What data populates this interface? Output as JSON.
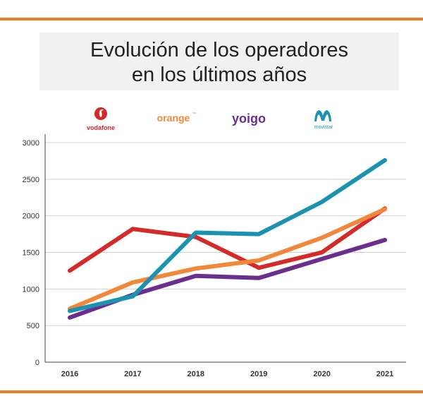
{
  "header": {
    "title_line1": "Evolución de los operadores",
    "title_line2": "en los últimos años"
  },
  "colors": {
    "rule": "#ef7c2a",
    "vodafone": "#d42a2a",
    "orange": "#f2873a",
    "yoigo": "#6a2f8e",
    "movistar": "#1b93b0",
    "grid": "#d4d4d4",
    "axis": "#444444"
  },
  "legend": [
    {
      "id": "vodafone",
      "brand": "vodafone",
      "icon": "vodafone-logo-icon"
    },
    {
      "id": "orange",
      "brand": "orange",
      "mark": "™",
      "icon": "orange-logo-icon"
    },
    {
      "id": "yoigo",
      "brand": "yoigo",
      "icon": "yoigo-logo-icon"
    },
    {
      "id": "movistar",
      "brand": "movistar",
      "icon": "movistar-logo-icon"
    }
  ],
  "chart_data": {
    "type": "line",
    "title": "Evolución de los operadores en los últimos años",
    "xlabel": "",
    "ylabel": "",
    "categories": [
      "2016",
      "2017",
      "2018",
      "2019",
      "2020",
      "2021"
    ],
    "ylim": [
      0,
      3000
    ],
    "yticks": [
      "0",
      "500",
      "1000",
      "1500",
      "2000",
      "2500",
      "3000"
    ],
    "grid": true,
    "legend_position": "top",
    "series": [
      {
        "name": "vodafone",
        "color": "#d42a2a",
        "values": [
          1250,
          1820,
          1710,
          1290,
          1500,
          2100
        ]
      },
      {
        "name": "orange",
        "color": "#f2873a",
        "values": [
          730,
          1090,
          1280,
          1390,
          1700,
          2090
        ]
      },
      {
        "name": "yoigo",
        "color": "#6a2f8e",
        "values": [
          610,
          920,
          1180,
          1150,
          1410,
          1670
        ]
      },
      {
        "name": "movistar",
        "color": "#1b93b0",
        "values": [
          700,
          900,
          1770,
          1750,
          2190,
          2760
        ]
      }
    ]
  }
}
